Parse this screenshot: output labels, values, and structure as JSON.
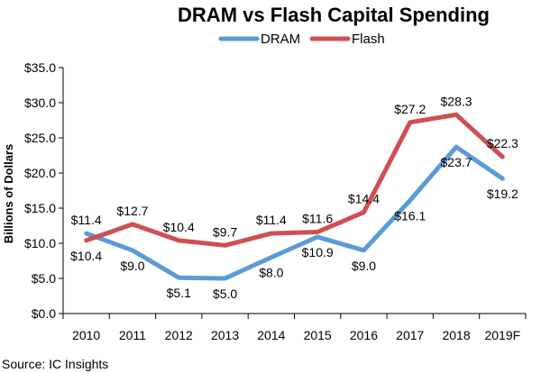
{
  "chart_data": {
    "type": "line",
    "title": "DRAM vs Flash Capital Spending",
    "xlabel": "",
    "ylabel": "Billions of Dollars",
    "ylim": [
      0,
      35
    ],
    "ytick_labels": [
      "$0.0",
      "$5.0",
      "$10.0",
      "$15.0",
      "$20.0",
      "$25.0",
      "$30.0",
      "$35.0"
    ],
    "ytick_values": [
      0,
      5,
      10,
      15,
      20,
      25,
      30,
      35
    ],
    "categories": [
      "2010",
      "2011",
      "2012",
      "2013",
      "2014",
      "2015",
      "2016",
      "2017",
      "2018",
      "2019F"
    ],
    "series": [
      {
        "name": "DRAM",
        "color": "#5B9BD5",
        "values": [
          11.4,
          9.0,
          5.1,
          5.0,
          8.0,
          10.9,
          9.0,
          16.1,
          23.7,
          19.2
        ],
        "labels": [
          "$11.4",
          "$9.0",
          "$5.1",
          "$5.0",
          "$8.0",
          "$10.9",
          "$9.0",
          "$16.1",
          "$23.7",
          "$19.2"
        ]
      },
      {
        "name": "Flash",
        "color": "#CF4F52",
        "values": [
          10.4,
          12.7,
          10.4,
          9.7,
          11.4,
          11.6,
          14.4,
          27.2,
          28.3,
          22.3
        ],
        "labels": [
          "$10.4",
          "$12.7",
          "$10.4",
          "$9.7",
          "$11.4",
          "$11.6",
          "$14.4",
          "$27.2",
          "$28.3",
          "$22.3"
        ]
      }
    ],
    "legend_position": "top-center",
    "grid": false,
    "source": "Source:  IC Insights"
  }
}
